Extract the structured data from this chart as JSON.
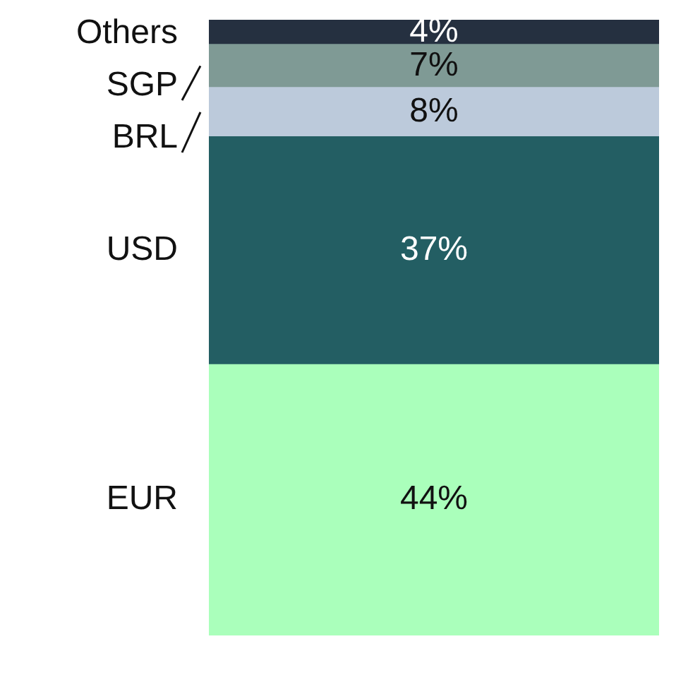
{
  "chart_data": {
    "type": "bar",
    "stacked": true,
    "categories": [
      null
    ],
    "legend": false,
    "series": [
      {
        "name": "EUR",
        "color": "#aaffbb",
        "values": [
          44
        ],
        "value_labels": [
          "44%"
        ]
      },
      {
        "name": "USD",
        "color": "#235e63",
        "values": [
          37
        ],
        "value_labels": [
          "37%"
        ]
      },
      {
        "name": "BRL",
        "color": "#bccadb",
        "values": [
          8
        ],
        "value_labels": [
          "8%"
        ]
      },
      {
        "name": "SGP",
        "color": "#7f9a95",
        "values": [
          7
        ],
        "value_labels": [
          "7%"
        ]
      },
      {
        "name": "Others",
        "color": "#253040",
        "values": [
          4
        ],
        "value_labels": [
          "4%"
        ]
      }
    ]
  }
}
